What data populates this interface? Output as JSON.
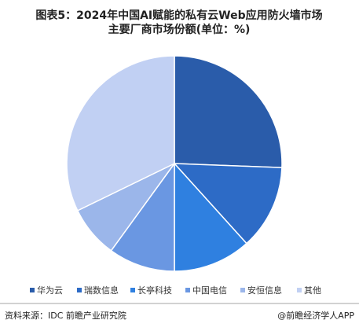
{
  "chart_data": {
    "type": "pie",
    "title": [
      "图表5：2024年中国AI赋能的私有云Web应用防火墙市场",
      "主要厂商市场份额(单位：%)"
    ],
    "categories": [
      "华为云",
      "瑞数信息",
      "长亭科技",
      "中国电信",
      "安恒信息",
      "其他"
    ],
    "values": [
      25.6,
      12.7,
      11.7,
      10.0,
      7.8,
      32.2
    ],
    "colors": [
      "#2a5caa",
      "#2d6bc6",
      "#2f80e0",
      "#6a97e2",
      "#9bb6ea",
      "#c1d0f3"
    ],
    "source": "资料来源：IDC 前瞻产业研究院",
    "credit": "@前瞻经济学人APP"
  }
}
